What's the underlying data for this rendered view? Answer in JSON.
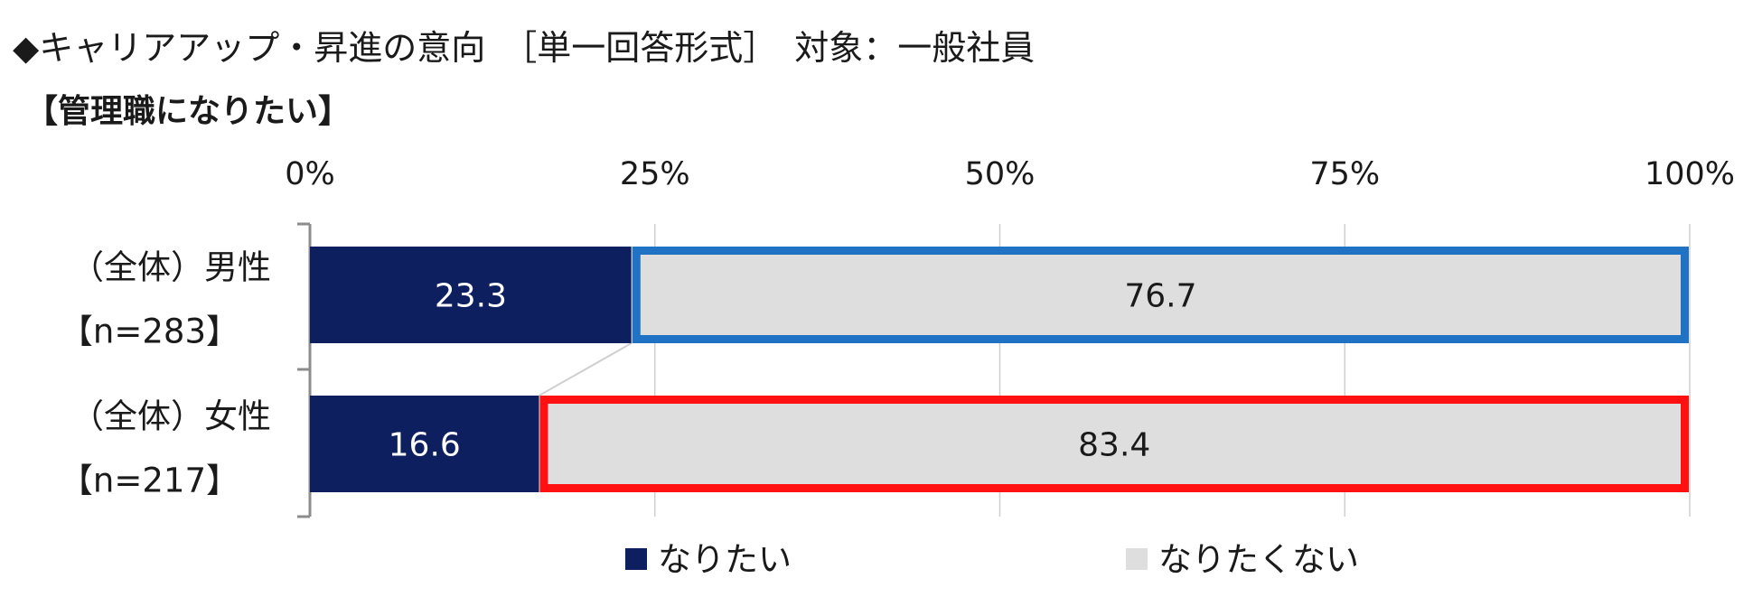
{
  "header": {
    "title": "◆キャリアアップ・昇進の意向　［単一回答形式］　対象：一般社員",
    "subtitle": "【管理職になりたい】"
  },
  "colors": {
    "want": "#0d1f5e",
    "not_want": "#dedede",
    "highlight_male": "#1f72c4",
    "highlight_female": "#ff1111",
    "axis": "#8c8c8c",
    "grid": "#d0d0d0"
  },
  "chart_data": {
    "type": "bar",
    "orientation": "horizontal",
    "stacked": true,
    "percent": true,
    "xlim": [
      0,
      100
    ],
    "x_ticks": [
      "0%",
      "25%",
      "50%",
      "75%",
      "100%"
    ],
    "categories": [
      {
        "line1": "（全体）男性",
        "line2": "【n=283】"
      },
      {
        "line1": "（全体）女性",
        "line2": "【n=217】"
      }
    ],
    "series": [
      {
        "name": "なりたい",
        "values": [
          23.3,
          16.6
        ]
      },
      {
        "name": "なりたくない",
        "values": [
          76.7,
          83.4
        ]
      }
    ],
    "data_labels": [
      [
        "23.3",
        "16.6"
      ],
      [
        "76.7",
        "83.4"
      ]
    ],
    "legend_position": "bottom",
    "grid": true
  }
}
